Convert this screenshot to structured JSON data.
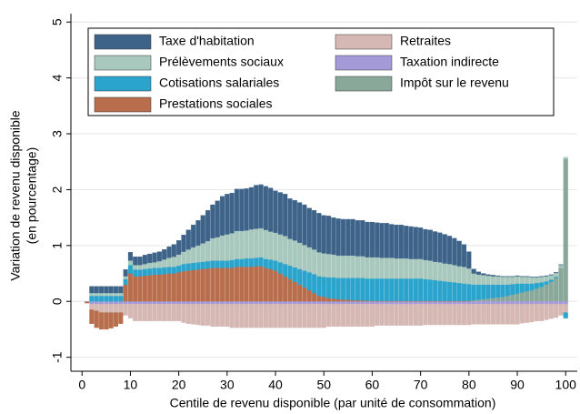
{
  "chart_data": {
    "type": "stacked_bar",
    "x_label": "Centile de revenu disponible (par unité de consommation)",
    "y_label": [
      "Variation de revenu disponible",
      "(en pourcentage)"
    ],
    "xlim": [
      -2.3,
      102.4
    ],
    "xticks": [
      0,
      10,
      20,
      30,
      40,
      50,
      60,
      70,
      80,
      90,
      100
    ],
    "ylim": [
      -1.25,
      5.15
    ],
    "yticks": [
      -1,
      0,
      1,
      2,
      3,
      4,
      5
    ],
    "grid": true,
    "legend": "top",
    "x": [
      1,
      2,
      3,
      4,
      5,
      6,
      7,
      8,
      9,
      10,
      11,
      12,
      13,
      14,
      15,
      16,
      17,
      18,
      19,
      20,
      21,
      22,
      23,
      24,
      25,
      26,
      27,
      28,
      29,
      30,
      31,
      32,
      33,
      34,
      35,
      36,
      37,
      38,
      39,
      40,
      41,
      42,
      43,
      44,
      45,
      46,
      47,
      48,
      49,
      50,
      51,
      52,
      53,
      54,
      55,
      56,
      57,
      58,
      59,
      60,
      61,
      62,
      63,
      64,
      65,
      66,
      67,
      68,
      69,
      70,
      71,
      72,
      73,
      74,
      75,
      76,
      77,
      78,
      79,
      80,
      81,
      82,
      83,
      84,
      85,
      86,
      87,
      88,
      89,
      90,
      91,
      92,
      93,
      94,
      95,
      96,
      97,
      98,
      99,
      100
    ],
    "series": [
      {
        "name": "Taxe d'habitation",
        "color": "#3e6389",
        "values": [
          0,
          0.12,
          0.12,
          0.12,
          0.12,
          0.12,
          0.12,
          0.12,
          0.12,
          0.15,
          0.15,
          0.15,
          0.16,
          0.16,
          0.17,
          0.17,
          0.18,
          0.2,
          0.22,
          0.25,
          0.3,
          0.35,
          0.4,
          0.45,
          0.5,
          0.55,
          0.6,
          0.65,
          0.7,
          0.72,
          0.72,
          0.75,
          0.75,
          0.75,
          0.75,
          0.78,
          0.78,
          0.78,
          0.78,
          0.75,
          0.75,
          0.75,
          0.72,
          0.72,
          0.72,
          0.72,
          0.7,
          0.7,
          0.7,
          0.68,
          0.68,
          0.66,
          0.66,
          0.65,
          0.65,
          0.65,
          0.64,
          0.64,
          0.63,
          0.63,
          0.62,
          0.62,
          0.62,
          0.6,
          0.6,
          0.6,
          0.58,
          0.58,
          0.57,
          0.56,
          0.55,
          0.55,
          0.54,
          0.53,
          0.52,
          0.5,
          0.48,
          0.45,
          0.4,
          0.3,
          0.08,
          0.05,
          0.03,
          0.02,
          0.02,
          0.01,
          0.01,
          0.01,
          0.01,
          0.01,
          0.01,
          0.01,
          0.01,
          0.01,
          0.01,
          0.01,
          0.01,
          0.01,
          0.01,
          0
        ]
      },
      {
        "name": "Prélèvements sociaux",
        "color": "#a8c8bd",
        "values": [
          0,
          0.05,
          0.05,
          0.05,
          0.05,
          0.05,
          0.05,
          0.05,
          0.05,
          0.08,
          0.08,
          0.08,
          0.09,
          0.1,
          0.1,
          0.12,
          0.14,
          0.16,
          0.18,
          0.2,
          0.22,
          0.25,
          0.28,
          0.3,
          0.33,
          0.36,
          0.4,
          0.42,
          0.45,
          0.47,
          0.48,
          0.5,
          0.5,
          0.5,
          0.52,
          0.52,
          0.52,
          0.52,
          0.5,
          0.5,
          0.5,
          0.5,
          0.48,
          0.48,
          0.47,
          0.46,
          0.45,
          0.44,
          0.43,
          0.42,
          0.42,
          0.41,
          0.4,
          0.4,
          0.4,
          0.4,
          0.39,
          0.39,
          0.38,
          0.38,
          0.38,
          0.37,
          0.37,
          0.37,
          0.36,
          0.36,
          0.36,
          0.35,
          0.35,
          0.35,
          0.34,
          0.34,
          0.33,
          0.33,
          0.32,
          0.32,
          0.31,
          0.3,
          0.3,
          0.28,
          0.2,
          0.18,
          0.17,
          0.16,
          0.15,
          0.15,
          0.14,
          0.14,
          0.13,
          0.13,
          0.12,
          0.12,
          0.11,
          0.1,
          0.1,
          0.09,
          0.08,
          0.07,
          0.05,
          0.03
        ]
      },
      {
        "name": "Cotisations salariales",
        "color": "#2aa4cc",
        "values": [
          0,
          0.1,
          0.1,
          0.1,
          0.1,
          0.1,
          0.1,
          0.1,
          0.1,
          0.15,
          0.12,
          0.12,
          0.12,
          0.12,
          0.12,
          0.12,
          0.12,
          0.12,
          0.12,
          0.12,
          0.13,
          0.13,
          0.13,
          0.13,
          0.13,
          0.13,
          0.13,
          0.13,
          0.13,
          0.13,
          0.14,
          0.14,
          0.14,
          0.15,
          0.15,
          0.15,
          0.16,
          0.16,
          0.17,
          0.18,
          0.2,
          0.22,
          0.24,
          0.26,
          0.28,
          0.3,
          0.32,
          0.34,
          0.35,
          0.36,
          0.37,
          0.38,
          0.38,
          0.39,
          0.39,
          0.4,
          0.4,
          0.4,
          0.4,
          0.4,
          0.4,
          0.4,
          0.4,
          0.4,
          0.4,
          0.4,
          0.4,
          0.4,
          0.4,
          0.4,
          0.39,
          0.38,
          0.37,
          0.36,
          0.35,
          0.34,
          0.33,
          0.32,
          0.31,
          0.3,
          0.28,
          0.27,
          0.26,
          0.25,
          0.24,
          0.23,
          0.22,
          0.2,
          0.19,
          0.18,
          0.16,
          0.14,
          0.12,
          0.1,
          0.08,
          0.06,
          0.04,
          0.02,
          0,
          -0.1
        ]
      },
      {
        "name": "Prestations sociales",
        "color": "#b86e4c",
        "values": [
          -0.02,
          -0.25,
          -0.3,
          -0.3,
          -0.3,
          -0.28,
          -0.25,
          -0.2,
          0.3,
          0.5,
          0.45,
          0.45,
          0.46,
          0.47,
          0.48,
          0.48,
          0.49,
          0.5,
          0.5,
          0.52,
          0.54,
          0.55,
          0.56,
          0.57,
          0.58,
          0.59,
          0.6,
          0.6,
          0.6,
          0.6,
          0.6,
          0.62,
          0.62,
          0.62,
          0.62,
          0.63,
          0.63,
          0.6,
          0.58,
          0.55,
          0.5,
          0.45,
          0.4,
          0.35,
          0.3,
          0.25,
          0.2,
          0.15,
          0.1,
          0.08,
          0.06,
          0.05,
          0.04,
          0.03,
          0.03,
          0.02,
          0.02,
          0.02,
          0.01,
          0.01,
          0.01,
          0.01,
          0.01,
          0.01,
          0.01,
          0.01,
          0.01,
          0.01,
          0.01,
          0.01,
          0.01,
          0.01,
          0.01,
          0.01,
          0.01,
          0.01,
          0.01,
          0.01,
          0.01,
          0.01,
          0,
          0,
          0,
          0,
          0,
          0,
          0,
          0,
          0,
          0,
          0,
          0,
          0,
          0,
          0,
          0,
          0,
          0,
          0,
          0
        ]
      },
      {
        "name": "Retraites",
        "color": "#d5b7b3",
        "values": [
          0,
          -0.1,
          -0.12,
          -0.15,
          -0.15,
          -0.15,
          -0.15,
          -0.15,
          -0.2,
          -0.25,
          -0.3,
          -0.3,
          -0.3,
          -0.3,
          -0.3,
          -0.3,
          -0.3,
          -0.3,
          -0.3,
          -0.3,
          -0.33,
          -0.35,
          -0.36,
          -0.37,
          -0.38,
          -0.38,
          -0.4,
          -0.4,
          -0.4,
          -0.4,
          -0.42,
          -0.42,
          -0.42,
          -0.42,
          -0.42,
          -0.42,
          -0.42,
          -0.42,
          -0.42,
          -0.42,
          -0.42,
          -0.42,
          -0.42,
          -0.42,
          -0.42,
          -0.42,
          -0.42,
          -0.42,
          -0.42,
          -0.42,
          -0.4,
          -0.4,
          -0.4,
          -0.4,
          -0.4,
          -0.4,
          -0.4,
          -0.4,
          -0.4,
          -0.4,
          -0.38,
          -0.38,
          -0.38,
          -0.38,
          -0.38,
          -0.38,
          -0.38,
          -0.38,
          -0.38,
          -0.38,
          -0.37,
          -0.37,
          -0.37,
          -0.37,
          -0.37,
          -0.37,
          -0.37,
          -0.37,
          -0.37,
          -0.37,
          -0.36,
          -0.36,
          -0.36,
          -0.36,
          -0.36,
          -0.36,
          -0.36,
          -0.36,
          -0.36,
          -0.36,
          -0.34,
          -0.33,
          -0.32,
          -0.3,
          -0.3,
          -0.28,
          -0.26,
          -0.24,
          -0.2,
          -0.15
        ]
      },
      {
        "name": "Taxation indirecte",
        "color": "#a49ad8",
        "values": [
          -0.01,
          -0.05,
          -0.05,
          -0.05,
          -0.05,
          -0.05,
          -0.05,
          -0.05,
          -0.05,
          -0.05,
          -0.05,
          -0.05,
          -0.05,
          -0.05,
          -0.05,
          -0.05,
          -0.05,
          -0.05,
          -0.05,
          -0.05,
          -0.05,
          -0.05,
          -0.05,
          -0.05,
          -0.05,
          -0.05,
          -0.05,
          -0.05,
          -0.05,
          -0.05,
          -0.05,
          -0.05,
          -0.05,
          -0.05,
          -0.05,
          -0.05,
          -0.05,
          -0.05,
          -0.05,
          -0.05,
          -0.05,
          -0.05,
          -0.05,
          -0.05,
          -0.05,
          -0.05,
          -0.05,
          -0.05,
          -0.05,
          -0.05,
          -0.05,
          -0.05,
          -0.05,
          -0.05,
          -0.05,
          -0.05,
          -0.05,
          -0.05,
          -0.05,
          -0.05,
          -0.05,
          -0.05,
          -0.05,
          -0.05,
          -0.05,
          -0.05,
          -0.05,
          -0.05,
          -0.05,
          -0.05,
          -0.05,
          -0.05,
          -0.05,
          -0.05,
          -0.05,
          -0.05,
          -0.05,
          -0.05,
          -0.05,
          -0.05,
          -0.05,
          -0.05,
          -0.05,
          -0.05,
          -0.05,
          -0.05,
          -0.05,
          -0.05,
          -0.05,
          -0.05,
          -0.05,
          -0.05,
          -0.05,
          -0.05,
          -0.05,
          -0.05,
          -0.05,
          -0.05,
          -0.05,
          -0.05
        ]
      },
      {
        "name": "Impôt sur le revenu",
        "color": "#8aa89a",
        "values": [
          0,
          0,
          0,
          0,
          0,
          0,
          0,
          0,
          0,
          0,
          0,
          0,
          0,
          0,
          0,
          0,
          0,
          0,
          0,
          0,
          0,
          0,
          0,
          0,
          0,
          0,
          0,
          0,
          0,
          0,
          0,
          0,
          0,
          0,
          0,
          0,
          0,
          0,
          0,
          0,
          0,
          0,
          0,
          0,
          0,
          0,
          0,
          0,
          0,
          0,
          0,
          0,
          0,
          0,
          0,
          0,
          0,
          0,
          0,
          0,
          0,
          0,
          0,
          0,
          0,
          0,
          0,
          0,
          0,
          0,
          0,
          0,
          0,
          0,
          0,
          0,
          0,
          0,
          0,
          0,
          0.02,
          0.03,
          0.04,
          0.05,
          0.06,
          0.07,
          0.08,
          0.1,
          0.12,
          0.14,
          0.16,
          0.18,
          0.2,
          0.23,
          0.26,
          0.3,
          0.35,
          0.42,
          0.6,
          2.55
        ]
      }
    ]
  }
}
